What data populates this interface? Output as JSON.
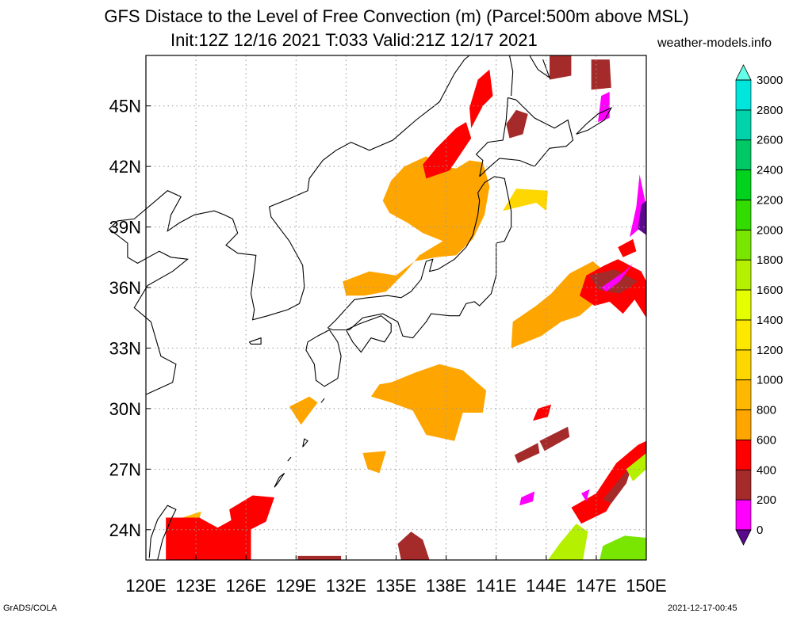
{
  "title": {
    "line1": "GFS Distace to the Level of Free Convection (m) (Parcel:500m above MSL)",
    "line2": "Init:12Z 12/16 2021 T:033 Valid:21Z 12/17 2021"
  },
  "credit": "weather-models.info",
  "footer": {
    "left": "GrADS/COLA",
    "right": "2021-12-17-00:45"
  },
  "axes": {
    "lon_labels": [
      "120E",
      "123E",
      "126E",
      "129E",
      "132E",
      "135E",
      "138E",
      "141E",
      "144E",
      "147E",
      "150E"
    ],
    "lat_labels": [
      "24N",
      "27N",
      "30N",
      "33N",
      "36N",
      "39N",
      "42N",
      "45N"
    ],
    "lon_range": [
      120,
      150
    ],
    "lat_range": [
      22.5,
      47.5
    ],
    "grid": "dotted"
  },
  "colorbar": {
    "labels": [
      "0",
      "200",
      "400",
      "600",
      "800",
      "1000",
      "1200",
      "1400",
      "1600",
      "1800",
      "2000",
      "2200",
      "2400",
      "2600",
      "2800",
      "3000"
    ],
    "colors": [
      "#5a0a8c",
      "#ff00ff",
      "#a52a2a",
      "#ff0000",
      "#ffa500",
      "#ffb800",
      "#ffd700",
      "#ffe800",
      "#e6ff00",
      "#b4f000",
      "#78e600",
      "#32dc00",
      "#00d21e",
      "#00c864",
      "#00d2aa",
      "#00e6dc",
      "#64ffe8"
    ]
  },
  "colors": {
    "coastline": "#000000",
    "grid": "#999999"
  }
}
